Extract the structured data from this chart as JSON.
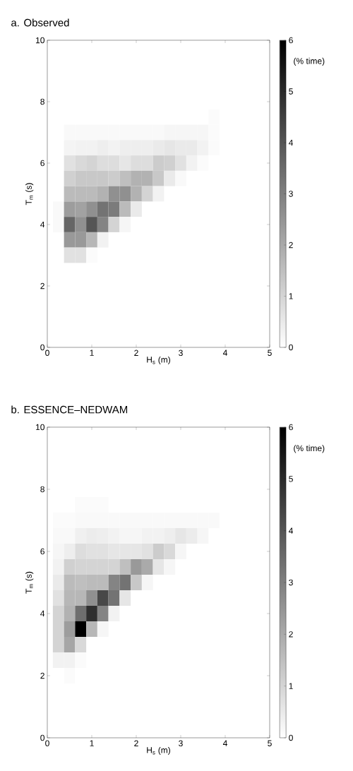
{
  "chart_data": [
    {
      "type": "heatmap",
      "title": "a. Observed",
      "xlabel": "H$_{s}$ (m)",
      "ylabel": "T$_{m}$ (s)",
      "clabel": "(% time)",
      "x": [
        0.25,
        0.5,
        0.75,
        1.0,
        1.25,
        1.5,
        1.75,
        2.0,
        2.25,
        2.5,
        2.75,
        3.0,
        3.25,
        3.5,
        3.75
      ],
      "y": [
        7.5,
        7.0,
        6.5,
        6.0,
        5.5,
        5.0,
        4.5,
        4.0,
        3.5,
        3.0
      ],
      "cells": [
        [
          null,
          null,
          null,
          null,
          null,
          null,
          null,
          null,
          null,
          null,
          null,
          null,
          null,
          null,
          0.1
        ],
        [
          null,
          0.15,
          0.15,
          0.15,
          0.15,
          0.15,
          0.15,
          0.15,
          0.15,
          0.15,
          0.2,
          0.2,
          0.2,
          0.2,
          0.1
        ],
        [
          null,
          0.25,
          0.3,
          0.3,
          0.4,
          0.3,
          0.4,
          0.4,
          0.4,
          0.5,
          0.6,
          0.5,
          0.5,
          0.3,
          0.1
        ],
        [
          null,
          0.7,
          0.9,
          1.0,
          0.8,
          0.8,
          0.6,
          0.8,
          0.8,
          1.2,
          1.1,
          0.7,
          0.3,
          0.1,
          null
        ],
        [
          null,
          1.1,
          1.3,
          1.3,
          1.3,
          1.2,
          1.5,
          1.8,
          1.8,
          1.3,
          0.5,
          0.15,
          null,
          null,
          null
        ],
        [
          null,
          1.6,
          1.6,
          1.6,
          1.8,
          2.6,
          2.6,
          1.8,
          1.0,
          0.3,
          null,
          null,
          null,
          null,
          null
        ],
        [
          0.15,
          2.3,
          2.2,
          2.6,
          3.3,
          3.1,
          1.6,
          0.5,
          null,
          null,
          null,
          null,
          null,
          null,
          null
        ],
        [
          0.15,
          3.6,
          2.6,
          4.0,
          2.9,
          1.0,
          0.2,
          null,
          null,
          null,
          null,
          null,
          null,
          null,
          null
        ],
        [
          null,
          2.4,
          2.4,
          1.7,
          0.3,
          null,
          null,
          null,
          null,
          null,
          null,
          null,
          null,
          null,
          null
        ],
        [
          null,
          0.7,
          0.7,
          0.1,
          null,
          null,
          null,
          null,
          null,
          null,
          null,
          null,
          null,
          null,
          null
        ]
      ],
      "xlim": [
        0,
        5
      ],
      "ylim": [
        0,
        10
      ],
      "xticks": [
        0,
        1,
        2,
        3,
        4,
        5
      ],
      "yticks": [
        0,
        2,
        4,
        6,
        8,
        10
      ],
      "clim": [
        0,
        6
      ],
      "cticks": [
        0,
        1,
        2,
        3,
        4,
        5,
        6
      ]
    },
    {
      "type": "heatmap",
      "title": "b. ESSENCE–NEDWAM",
      "xlabel": "H$_{s}$ (m)",
      "ylabel": "T$_{m}$ (s)",
      "clabel": "(% time)",
      "x": [
        0.25,
        0.5,
        0.75,
        1.0,
        1.25,
        1.5,
        1.75,
        2.0,
        2.25,
        2.5,
        2.75,
        3.0,
        3.25,
        3.5,
        3.75
      ],
      "y": [
        7.5,
        7.0,
        6.5,
        6.0,
        5.5,
        5.0,
        4.5,
        4.0,
        3.5,
        3.0,
        2.5,
        2.0
      ],
      "cells": [
        [
          null,
          null,
          0.1,
          0.1,
          0.1,
          null,
          null,
          null,
          null,
          null,
          null,
          null,
          null,
          null,
          null
        ],
        [
          0.1,
          0.1,
          0.15,
          0.15,
          0.15,
          0.15,
          0.15,
          0.15,
          0.15,
          0.15,
          0.15,
          0.15,
          0.15,
          0.15,
          0.15
        ],
        [
          0.15,
          0.15,
          0.35,
          0.45,
          0.4,
          0.3,
          0.2,
          0.2,
          0.3,
          0.3,
          0.4,
          0.6,
          0.45,
          0.2,
          null
        ],
        [
          0.2,
          0.4,
          0.8,
          0.7,
          0.7,
          0.6,
          0.6,
          0.6,
          0.7,
          1.2,
          0.9,
          0.2,
          null,
          null,
          null
        ],
        [
          0.3,
          1.1,
          1.0,
          1.0,
          1.0,
          1.0,
          1.5,
          2.4,
          2.0,
          0.6,
          0.2,
          null,
          null,
          null,
          null
        ],
        [
          0.5,
          1.6,
          1.5,
          1.6,
          1.6,
          2.9,
          3.3,
          1.3,
          0.2,
          null,
          null,
          null,
          null,
          null,
          null
        ],
        [
          0.7,
          1.7,
          1.7,
          2.6,
          4.3,
          3.3,
          0.6,
          null,
          null,
          null,
          null,
          null,
          null,
          null,
          null
        ],
        [
          1.0,
          1.8,
          3.4,
          4.9,
          2.9,
          0.3,
          null,
          null,
          null,
          null,
          null,
          null,
          null,
          null,
          null
        ],
        [
          1.0,
          2.3,
          6.0,
          1.7,
          0.2,
          null,
          null,
          null,
          null,
          null,
          null,
          null,
          null,
          null,
          null
        ],
        [
          1.0,
          2.1,
          0.9,
          null,
          null,
          null,
          null,
          null,
          null,
          null,
          null,
          null,
          null,
          null,
          null
        ],
        [
          0.3,
          0.3,
          0.1,
          null,
          null,
          null,
          null,
          null,
          null,
          null,
          null,
          null,
          null,
          null,
          null
        ],
        [
          null,
          0.1,
          null,
          null,
          null,
          null,
          null,
          null,
          null,
          null,
          null,
          null,
          null,
          null,
          null
        ]
      ],
      "xlim": [
        0,
        5
      ],
      "ylim": [
        0,
        10
      ],
      "xticks": [
        0,
        1,
        2,
        3,
        4,
        5
      ],
      "yticks": [
        0,
        2,
        4,
        6,
        8,
        10
      ],
      "clim": [
        0,
        6
      ],
      "cticks": [
        0,
        1,
        2,
        3,
        4,
        5,
        6
      ]
    }
  ]
}
